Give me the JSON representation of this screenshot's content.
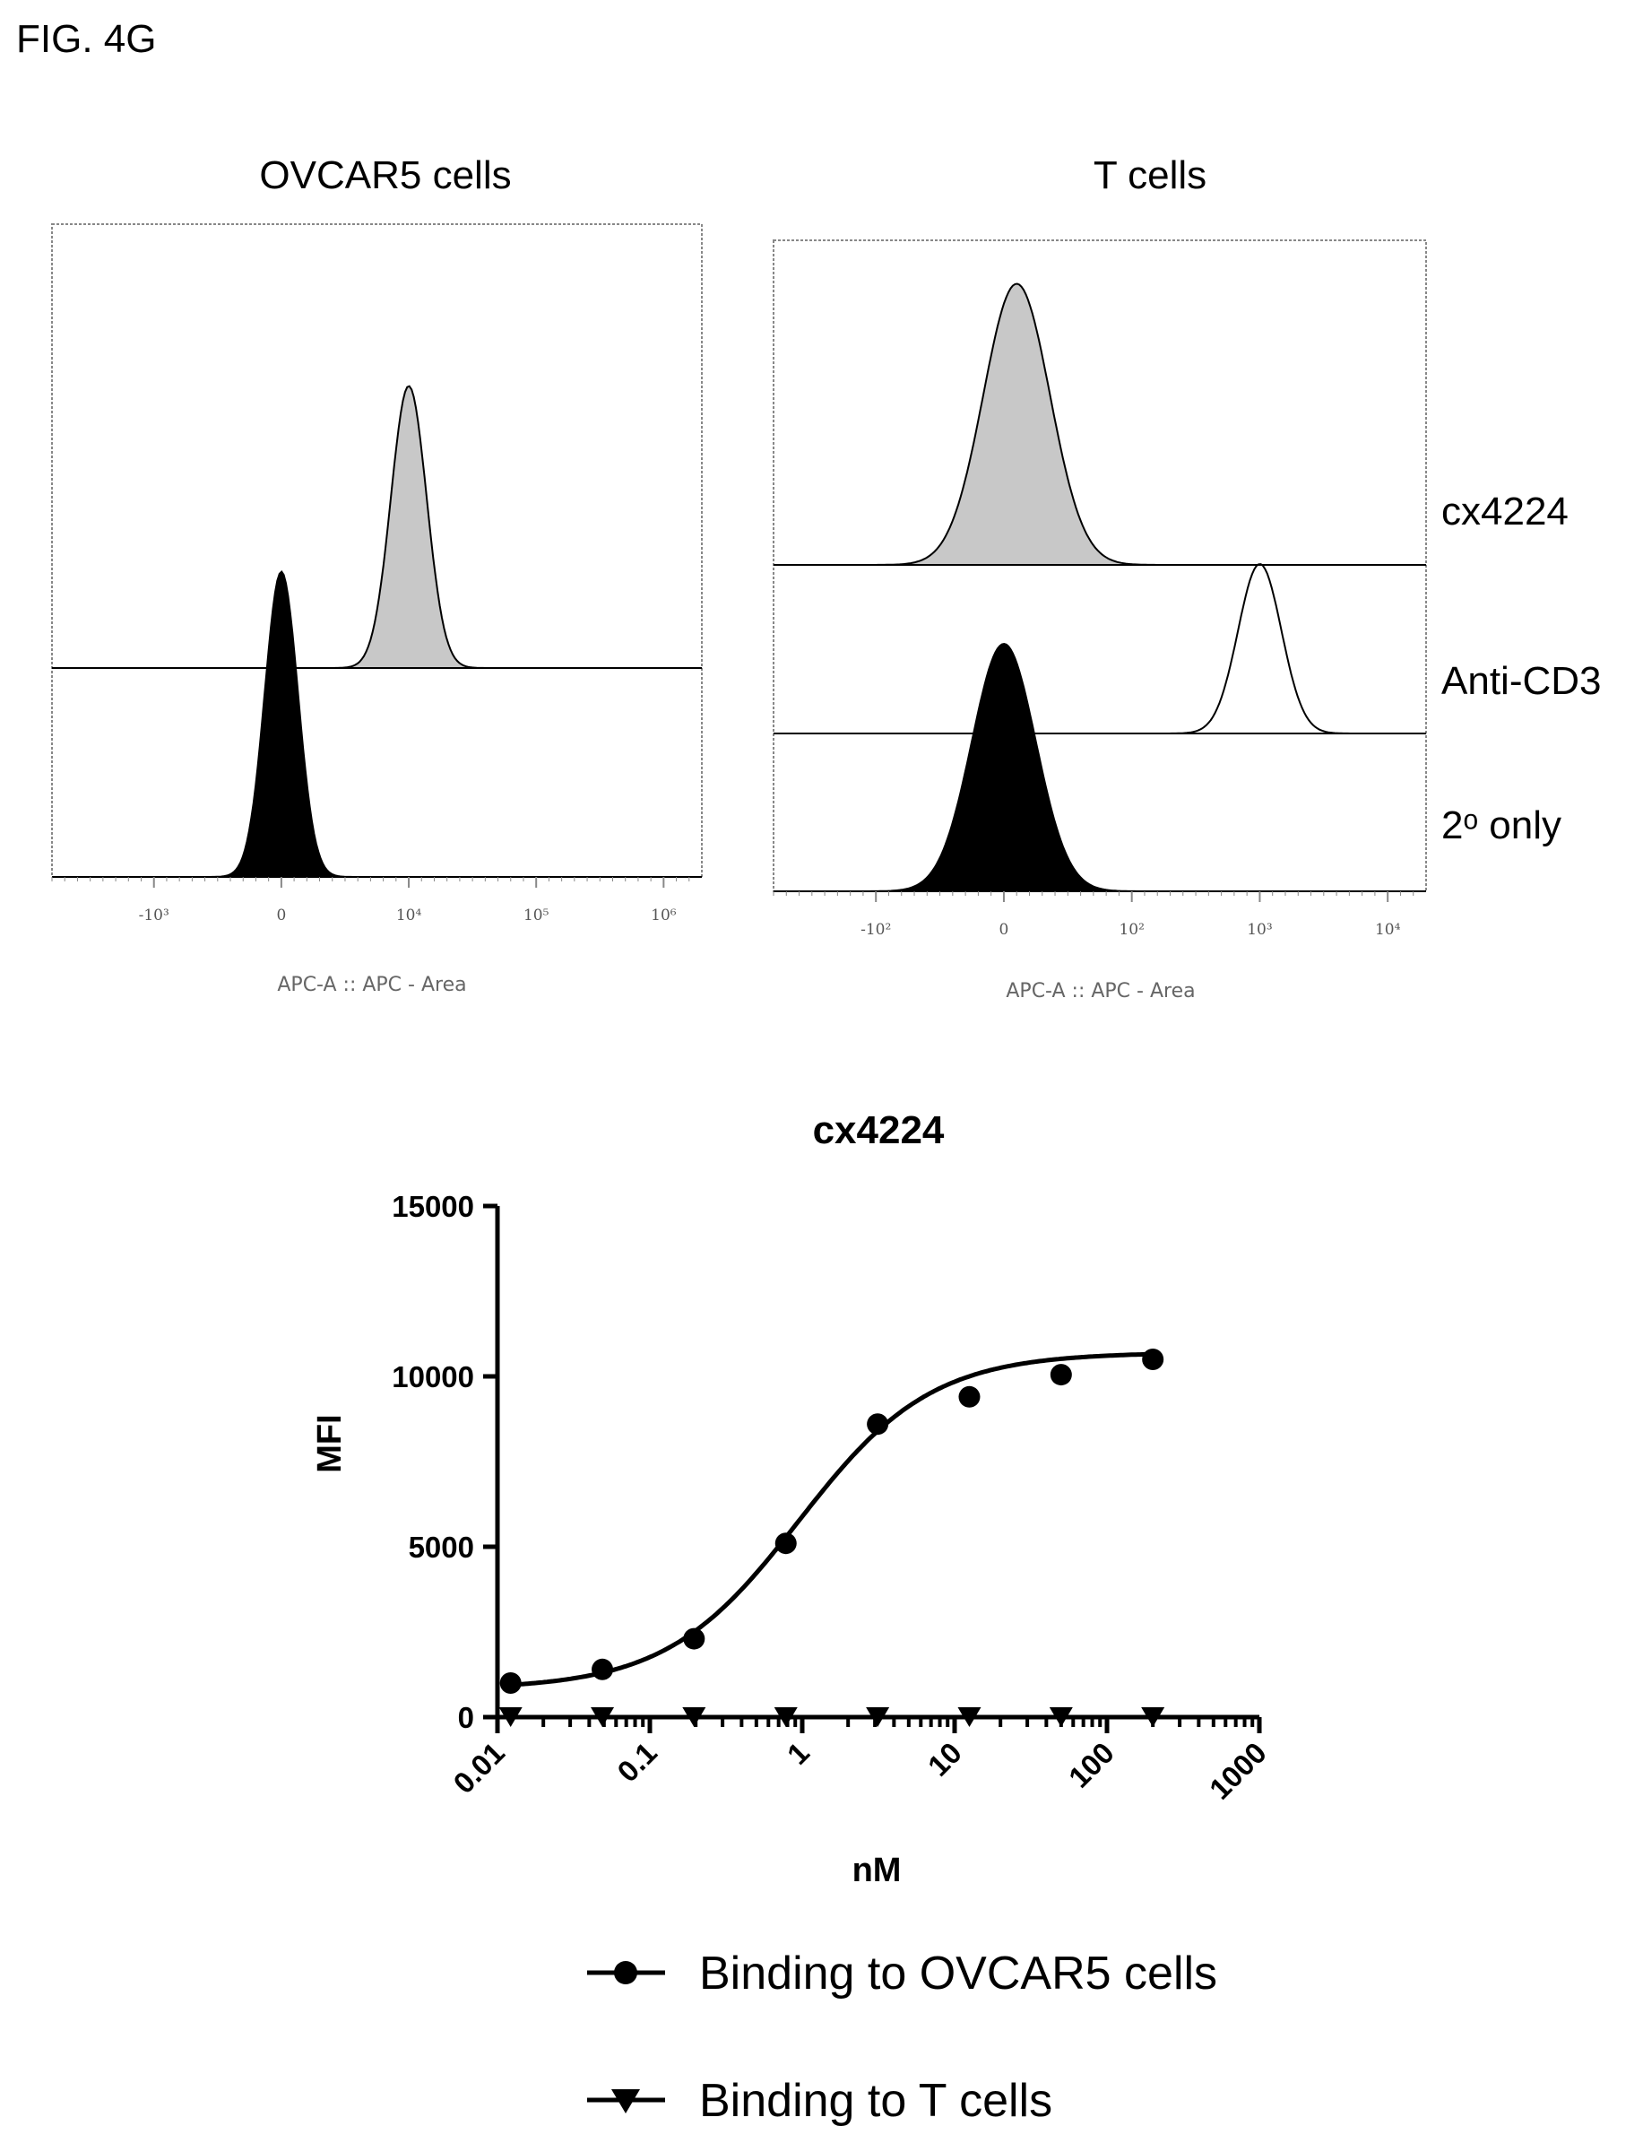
{
  "figure_label": "FIG. 4G",
  "colors": {
    "ink": "#000000",
    "shade": "#c8c8c8",
    "frame": "#888888",
    "tick_text": "#555555"
  },
  "chart_data": [
    {
      "type": "histogram",
      "title": "OVCAR5 cells",
      "xlabel": "APC-A :: APC - Area",
      "x_scale": "biexponential",
      "x_ticks": [
        "-10³",
        "0",
        "10⁴",
        "10⁵",
        "10⁶"
      ],
      "tick_positions": [
        -1,
        0,
        1,
        2,
        3
      ],
      "xlim": [
        -1.8,
        3.3
      ],
      "grid": false,
      "traces": [
        {
          "row": 0,
          "fill": "shade",
          "peak_center": 1.0,
          "peak_width": 0.14,
          "peak_height": 0.85
        },
        {
          "row": 1,
          "fill": "solid",
          "peak_center": 0.0,
          "peak_width": 0.13,
          "peak_height": 0.92
        }
      ]
    },
    {
      "type": "histogram",
      "title": "T cells",
      "xlabel": "APC-A :: APC - Area",
      "x_scale": "biexponential",
      "x_ticks": [
        "-10²",
        "0",
        "10²",
        "10³",
        "10⁴"
      ],
      "tick_positions": [
        -1,
        0,
        1,
        2,
        3
      ],
      "xlim": [
        -1.8,
        3.3
      ],
      "grid": false,
      "row_labels": [
        "cx4224",
        "Anti-CD3",
        "2ᵒ only"
      ],
      "traces": [
        {
          "row": 0,
          "fill": "shade",
          "peak_center": 0.1,
          "peak_width": 0.26,
          "peak_height": 0.95
        },
        {
          "row": 1,
          "fill": "none",
          "peak_center": 2.0,
          "peak_width": 0.17,
          "peak_height": 0.9
        },
        {
          "row": 2,
          "fill": "solid",
          "peak_center": 0.0,
          "peak_width": 0.25,
          "peak_height": 0.92
        }
      ]
    },
    {
      "type": "scatter",
      "title": "cx4224",
      "xlabel": "nM",
      "ylabel": "MFI",
      "x_scale": "log",
      "xlim": [
        0.01,
        1000
      ],
      "ylim": [
        0,
        15000
      ],
      "x_ticks": [
        "0.01",
        "0.1",
        "1",
        "10",
        "100",
        "1000"
      ],
      "y_ticks": [
        "0",
        "5000",
        "10000",
        "15000"
      ],
      "grid": false,
      "legend_position": "bottom",
      "series": [
        {
          "name": "Binding to OVCAR5 cells",
          "marker": "circle",
          "x": [
            0.0122,
            0.0488,
            0.195,
            0.781,
            3.125,
            12.5,
            50,
            200
          ],
          "y": [
            1000,
            1400,
            2300,
            5100,
            8600,
            9400,
            10050,
            10500
          ],
          "fit": {
            "bottom": 820,
            "top": 10700,
            "ec50": 0.95,
            "hill": 1.0
          }
        },
        {
          "name": "Binding to T cells",
          "marker": "triangle-down",
          "x": [
            0.0122,
            0.0488,
            0.195,
            0.781,
            3.125,
            12.5,
            50,
            200
          ],
          "y": [
            0,
            0,
            0,
            0,
            0,
            0,
            0,
            0
          ]
        }
      ]
    }
  ]
}
